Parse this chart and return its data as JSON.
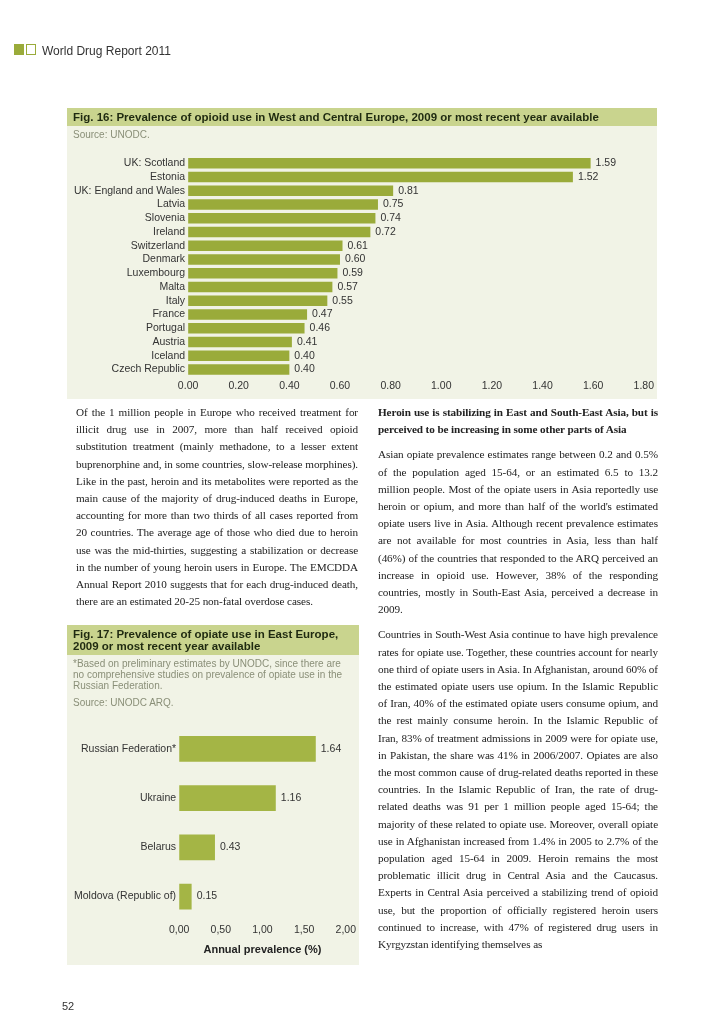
{
  "chart_data": [
    {
      "type": "bar",
      "orientation": "horizontal",
      "title": "Fig. 16:   Prevalence of opioid use in West and Central Europe, 2009 or most recent year available",
      "subtitle": "Source: UNODC.",
      "categories": [
        "UK: Scotland",
        "Estonia",
        "UK: England and Wales",
        "Latvia",
        "Slovenia",
        "Ireland",
        "Switzerland",
        "Denmark",
        "Luxembourg",
        "Malta",
        "Italy",
        "France",
        "Portugal",
        "Austria",
        "Iceland",
        "Czech Republic"
      ],
      "values": [
        1.59,
        1.52,
        0.81,
        0.75,
        0.74,
        0.72,
        0.61,
        0.6,
        0.59,
        0.57,
        0.55,
        0.47,
        0.46,
        0.41,
        0.4,
        0.4
      ],
      "value_labels": [
        "1.59",
        "1.52",
        "0.81",
        "0.75",
        "0.74",
        "0.72",
        "0.61",
        "0.60",
        "0.59",
        "0.57",
        "0.55",
        "0.47",
        "0.46",
        "0.41",
        "0.40",
        "0.40"
      ],
      "color": "#9aab3a",
      "xlim": [
        0,
        1.8
      ],
      "xticks": [
        {
          "value": 0,
          "label": "0.00"
        },
        {
          "value": 0.2,
          "label": "0.20"
        },
        {
          "value": 0.4,
          "label": "0.40"
        },
        {
          "value": 0.6,
          "label": "0.60"
        },
        {
          "value": 0.8,
          "label": "0.80"
        },
        {
          "value": 1,
          "label": "1.00"
        },
        {
          "value": 1.2,
          "label": "1.20"
        },
        {
          "value": 1.4,
          "label": "1.40"
        },
        {
          "value": 1.6,
          "label": "1.60"
        },
        {
          "value": 1.8,
          "label": "1.80"
        }
      ],
      "legend": false,
      "annotations": [
        "World Drug Report 2011",
        "52",
        "Of the 1 million people in Europe who received treatment for illicit drug use in 2007, more than half received opioid substitution treatment (mainly methadone, to a lesser extent buprenorphine and, in some countries, slow-release morphines). Like in the past, heroin and its metabolites were reported as the main cause of the majority of drug-induced deaths in Europe, accounting for more than two thirds of all cases reported from 20 countries. The average age of those who died due to heroin use was the mid-thirties, suggesting a stabilization or decrease in the number of young heroin users in Europe. The EMCDDA Annual Report 2010 suggests that for each drug-induced death, there are an estimated 20-25 non-fatal overdose cases."
      ]
    },
    {
      "type": "bar",
      "orientation": "horizontal",
      "title": "Fig. 17:   Prevalence of opiate use in East Europe, 2009 or most recent year available",
      "subtitle": "*Based on preliminary estimates by UNODC, since there are no comprehensive studies on prevalence of opiate use in the Russian Federation.",
      "categories": [
        "Russian Federation*",
        "Ukraine",
        "Belarus",
        "Moldova (Republic of)"
      ],
      "values": [
        1.64,
        1.16,
        0.43,
        0.15
      ],
      "value_labels": [
        "1.64",
        "1.16",
        "0.43",
        "0.15"
      ],
      "color": "#a4b545",
      "xlim": [
        0,
        2
      ],
      "xticks": [
        {
          "value": 0,
          "label": "0,00"
        },
        {
          "value": 0.5,
          "label": "0,50"
        },
        {
          "value": 1,
          "label": "1,00"
        },
        {
          "value": 1.5,
          "label": "1,50"
        },
        {
          "value": 2,
          "label": "2,00"
        }
      ],
      "xlabel": "Annual prevalence (%)",
      "legend": false,
      "annotations": [
        "Source: UNODC ARQ.",
        "Heroin use is stabilizing in East and South-East Asia, but is perceived to be increasing in some other parts of Asia",
        "Asian opiate prevalence estimates range between 0.2 and 0.5% of the population aged 15-64, or an estimated 6.5 to 13.2 million people. Most of the opiate users in Asia reportedly use heroin or opium, and more than half of the world's estimated opiate users live in Asia. Although recent prevalence estimates are not available for most countries in Asia, less than half (46%) of the countries that responded to the ARQ perceived an increase in opioid use. However, 38% of the responding countries, mostly in South-East Asia, perceived a decrease in 2009.",
        "Countries in South-West Asia continue to have high prevalence rates for opiate use. Together, these countries account for nearly one third of opiate users in Asia. In Afghanistan, around 60% of the estimated opiate users use opium. In the Islamic Republic of Iran, 40% of the estimated opiate users consume opium, and the rest mainly consume heroin. In the Islamic Republic of Iran, 83% of treatment admissions in 2009 were for opiate use, in Pakistan, the share was 41% in 2006/2007. Opiates are also the most common cause of drug-related deaths reported in these countries. In the Islamic Republic of Iran, the rate of drug-related deaths was 91 per 1 million people aged 15-64; the majority of these related to opiate use. Moreover, overall opiate use in Afghanistan increased from 1.4% in 2005 to 2.7% of the population aged 15-64 in 2009. Heroin remains the most problematic illicit drug in Central Asia and the Caucasus. Experts in Central Asia perceived a stabilizing trend of opioid use, but the proportion of officially registered heroin users continued to increase, with 47% of registered drug users in Kyrgyzstan identifying themselves as"
      ]
    }
  ]
}
